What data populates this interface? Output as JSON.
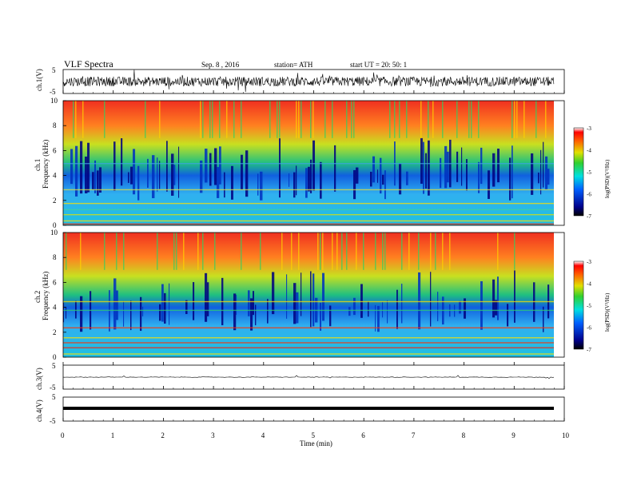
{
  "header": {
    "title": "VLF  Spectra",
    "date": "Sep. 8  , 2016",
    "station": "station= ATH",
    "start": "start  UT  =    20: 50: 1"
  },
  "chart_data": [
    {
      "type": "line",
      "panel": "ch1-waveform",
      "ylabel": "ch.1(V)",
      "ylim": [
        -5,
        5
      ],
      "yticks": [
        "5",
        "-5"
      ],
      "xlim": [
        0,
        10
      ],
      "data_extent_min": [
        0,
        9.8
      ],
      "description": "dense noisy waveform centred near 0 V, amplitude mostly within about -3..+3 V"
    },
    {
      "type": "heatmap",
      "panel": "ch1-spectrogram",
      "ylabel_top": "ch.1",
      "ylabel": "Frequency  (kHz)",
      "ylim": [
        0,
        10
      ],
      "yticks": [
        "0",
        "2",
        "4",
        "6",
        "8",
        "10"
      ],
      "xlim": [
        0,
        10
      ],
      "colorbar": {
        "label": "log(PSD)(V²/Hz)",
        "range": [
          -7,
          -3
        ],
        "ticks": [
          "-3",
          "-4",
          "-5",
          "-6",
          "-7"
        ]
      },
      "description": "high PSD (red/yellow) above ~4 kHz, low PSD (blue) bursts 2-6 kHz, horizontal bands below 3 kHz"
    },
    {
      "type": "heatmap",
      "panel": "ch2-spectrogram",
      "ylabel_top": "ch.2",
      "ylabel": "Frequency  (kHz)",
      "ylim": [
        0,
        10
      ],
      "yticks": [
        "0",
        "2",
        "4",
        "6",
        "8",
        "10"
      ],
      "xlim": [
        0,
        10
      ],
      "colorbar": {
        "label": "log(PSD)(V²/Hz)",
        "range": [
          -7,
          -3
        ],
        "ticks": [
          "-3",
          "-4",
          "-5",
          "-6",
          "-7"
        ]
      },
      "description": "similar structure to ch.1 with stronger low-frequency bands"
    },
    {
      "type": "line",
      "panel": "ch3-waveform",
      "ylabel": "ch.3(V)",
      "ylim": [
        -5,
        5
      ],
      "yticks": [
        "5",
        "-5"
      ],
      "xlim": [
        0,
        10
      ],
      "description": "flat trace near 0 V with small spikes"
    },
    {
      "type": "line",
      "panel": "ch4-waveform",
      "ylabel": "ch.4(V)",
      "ylim": [
        -5,
        5
      ],
      "yticks": [
        "5",
        "-5"
      ],
      "xlim": [
        0,
        10
      ],
      "xlabel": "Time  (min)",
      "xticks": [
        "0",
        "1",
        "2",
        "3",
        "4",
        "5",
        "6",
        "7",
        "8",
        "9",
        "10"
      ],
      "description": "thick flat line near 0 V"
    }
  ]
}
